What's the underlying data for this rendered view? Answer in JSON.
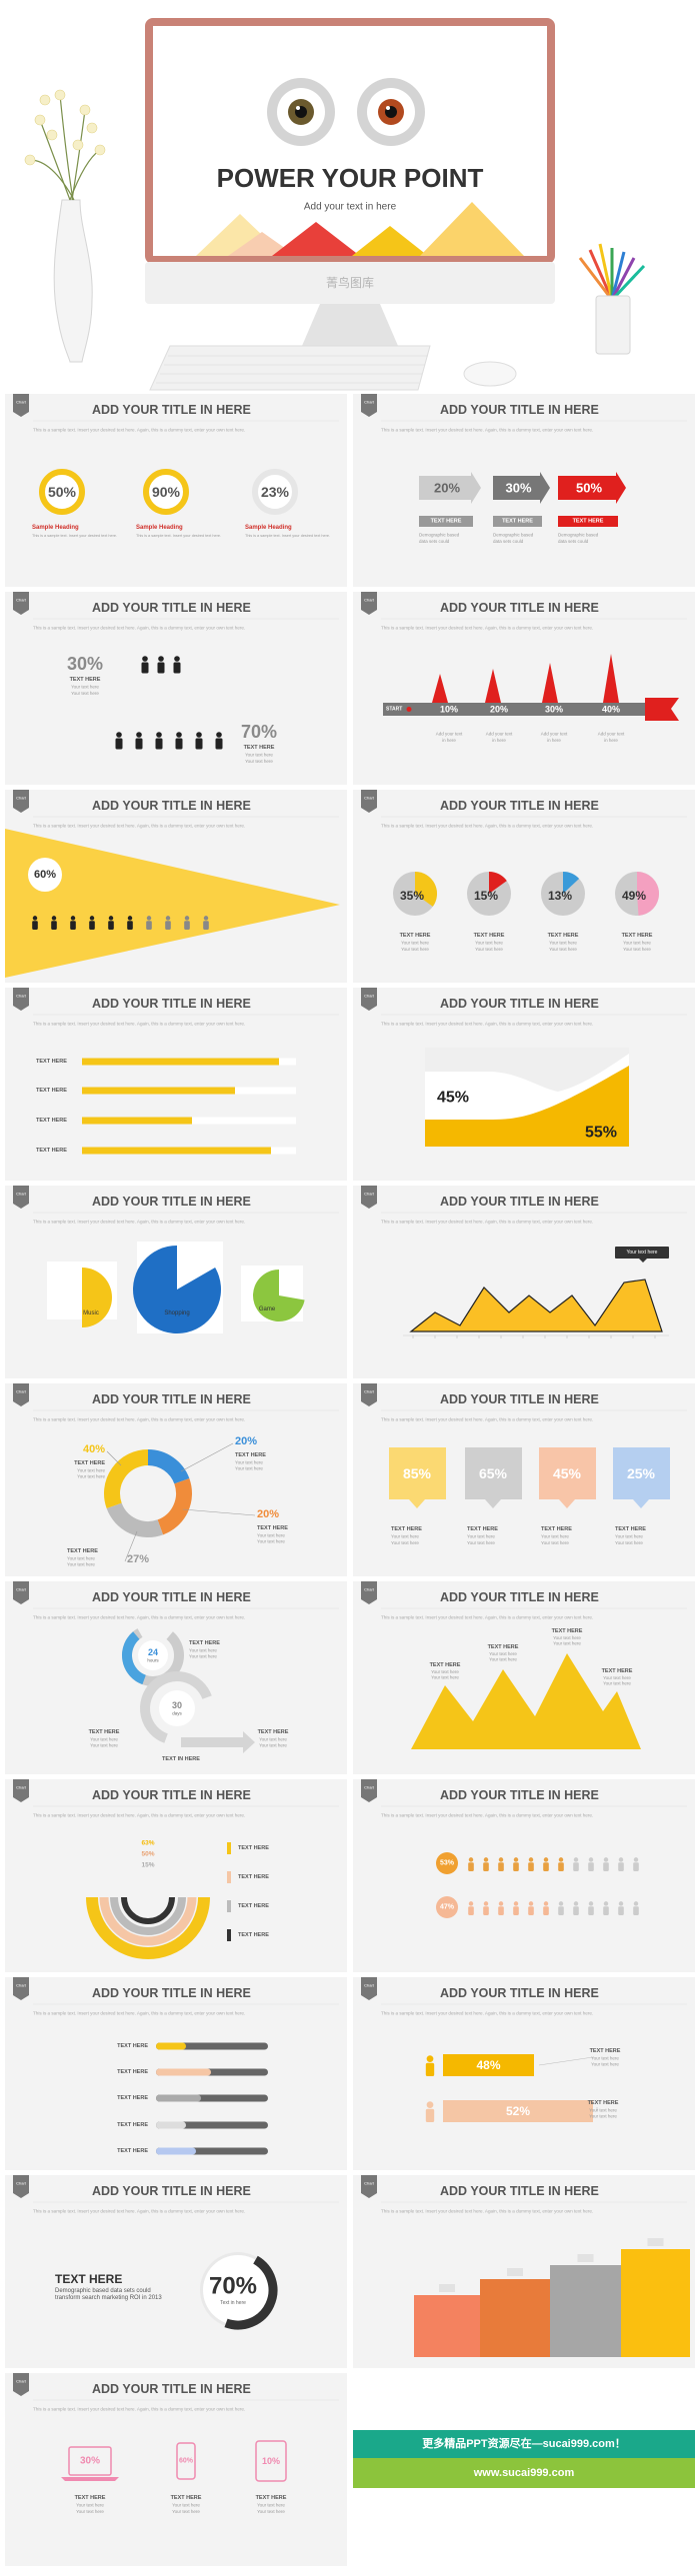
{
  "hero": {
    "title": "POWER YOUR POINT",
    "subtitle": "Add your text in here",
    "brand": "菁鸟图库"
  },
  "slides": [
    {
      "tag": "Chart",
      "title": "ADD YOUR TITLE IN HERE",
      "intro": "This is a sample text. Insert your desired text here. Again, this is a dummy text, enter your own text here.",
      "items": [
        {
          "value": "50%",
          "heading": "Sample Heading",
          "text": "This is a sample text. Insert your desired text here."
        },
        {
          "value": "90%",
          "heading": "Sample Heading",
          "text": "This is a sample text. Insert your desired text here."
        },
        {
          "value": "23%",
          "heading": "Sample Heading",
          "text": "This is a sample text. Insert your desired text here."
        }
      ]
    },
    {
      "tag": "Chart",
      "title": "ADD YOUR TITLE IN HERE",
      "intro": "This is a sample text. Insert your desired text here. Again, this is a dummy text, enter your own text here.",
      "items": [
        {
          "value": "20%",
          "label": "TEXT HERE",
          "text": [
            "Demographic based",
            "data sets could"
          ]
        },
        {
          "value": "30%",
          "label": "TEXT HERE",
          "text": [
            "Demographic based",
            "data sets could"
          ]
        },
        {
          "value": "50%",
          "label": "TEXT HERE",
          "text": [
            "Demographic based",
            "data sets could"
          ]
        }
      ]
    },
    {
      "tag": "Chart",
      "title": "ADD YOUR TITLE IN HERE",
      "intro": "This is a sample text. Insert your desired text here. Again, this is a dummy text, enter your own text here.",
      "items": [
        {
          "value": "30%",
          "label": "TEXT HERE",
          "text": [
            "Your text here",
            "Your text here"
          ]
        },
        {
          "value": "70%",
          "label": "TEXT HERE",
          "text": [
            "Your text here",
            "Your text here"
          ]
        }
      ]
    },
    {
      "tag": "Chart",
      "title": "ADD YOUR TITLE IN HERE",
      "intro": "This is a sample text. Insert your desired text here. Again, this is a dummy text, enter your own text here.",
      "start": "START",
      "items": [
        {
          "value": "10%",
          "text": [
            "Add your text",
            "in here"
          ]
        },
        {
          "value": "20%",
          "text": [
            "Add your text",
            "in here"
          ]
        },
        {
          "value": "30%",
          "text": [
            "Add your text",
            "in here"
          ]
        },
        {
          "value": "40%",
          "text": [
            "Add your text",
            "in here"
          ]
        }
      ]
    },
    {
      "tag": "Chart",
      "title": "ADD YOUR TITLE IN HERE",
      "intro": "This is a sample text. Insert your desired text here. Again, this is a dummy text, enter your own text here.",
      "value": "60%"
    },
    {
      "tag": "Chart",
      "title": "ADD YOUR TITLE IN HERE",
      "intro": "This is a sample text. Insert your desired text here. Again, this is a dummy text, enter your own text here.",
      "items": [
        {
          "value": "35%",
          "label": "TEXT HERE",
          "text": [
            "Your text here",
            "Your text here"
          ]
        },
        {
          "value": "15%",
          "label": "TEXT HERE",
          "text": [
            "Your text here",
            "Your text here"
          ]
        },
        {
          "value": "13%",
          "label": "TEXT HERE",
          "text": [
            "Your text here",
            "Your text here"
          ]
        },
        {
          "value": "49%",
          "label": "TEXT HERE",
          "text": [
            "Your text here",
            "Your text here"
          ]
        }
      ]
    },
    {
      "tag": "Chart",
      "title": "ADD YOUR TITLE IN HERE",
      "intro": "This is a sample text. Insert your desired text here. Again, this is a dummy text, enter your own text here.",
      "items": [
        "TEXT HERE",
        "TEXT HERE",
        "TEXT HERE",
        "TEXT HERE"
      ]
    },
    {
      "tag": "Chart",
      "title": "ADD YOUR TITLE IN HERE",
      "intro": "This is a sample text. Insert your desired text here. Again, this is a dummy text, enter your own text here.",
      "values": [
        "45%",
        "55%"
      ]
    },
    {
      "tag": "Chart",
      "title": "ADD YOUR TITLE IN HERE",
      "intro": "This is a sample text. Insert your desired text here. Again, this is a dummy text, enter your own text here.",
      "labels": [
        "Music",
        "Shopping",
        "Game"
      ]
    },
    {
      "tag": "Chart",
      "title": "ADD YOUR TITLE IN HERE",
      "intro": "This is a sample text. Insert your desired text here. Again, this is a dummy text, enter your own text here.",
      "note": "Your text here"
    },
    {
      "tag": "Chart",
      "title": "ADD YOUR TITLE IN HERE",
      "intro": "This is a sample text. Insert your desired text here. Again, this is a dummy text, enter your own text here.",
      "items": [
        {
          "value": "40%",
          "label": "TEXT HERE",
          "text": [
            "Your text here",
            "Your text here"
          ]
        },
        {
          "value": "20%",
          "label": "TEXT HERE",
          "text": [
            "Your text here",
            "Your text here"
          ]
        },
        {
          "value": "20%",
          "label": "TEXT HERE",
          "text": [
            "Your text here",
            "Your text here"
          ]
        },
        {
          "value": "27%",
          "label": "TEXT HERE",
          "text": [
            "Your text here",
            "Your text here"
          ]
        }
      ]
    },
    {
      "tag": "Chart",
      "title": "ADD YOUR TITLE IN HERE",
      "intro": "This is a sample text. Insert your desired text here. Again, this is a dummy text, enter your own text here.",
      "items": [
        {
          "value": "85%",
          "label": "TEXT HERE",
          "text": [
            "Your text here",
            "Your text here"
          ]
        },
        {
          "value": "65%",
          "label": "TEXT HERE",
          "text": [
            "Your text here",
            "Your text here"
          ]
        },
        {
          "value": "45%",
          "label": "TEXT HERE",
          "text": [
            "Your text here",
            "Your text here"
          ]
        },
        {
          "value": "25%",
          "label": "TEXT HERE",
          "text": [
            "Your text here",
            "Your text here"
          ]
        }
      ]
    },
    {
      "tag": "Chart",
      "title": "ADD YOUR TITLE IN HERE",
      "intro": "This is a sample text. Insert your desired text here. Again, this is a dummy text, enter your own text here.",
      "circles": [
        [
          "24",
          "hours"
        ],
        [
          "30",
          "days"
        ]
      ],
      "items": [
        {
          "label": "TEXT HERE",
          "text": [
            "Your text here",
            "Your text here"
          ]
        },
        {
          "label": "TEXT HERE",
          "text": [
            "Your text here",
            "Your text here"
          ]
        },
        {
          "label": "TEXT HERE",
          "text": [
            "Your text here",
            "Your text here"
          ]
        }
      ],
      "caption": "TEXT IN HERE"
    },
    {
      "tag": "Chart",
      "title": "ADD YOUR TITLE IN HERE",
      "intro": "This is a sample text. Insert your desired text here. Again, this is a dummy text, enter your own text here.",
      "items": [
        {
          "label": "TEXT HERE",
          "text": [
            "Your text here",
            "Your text here"
          ]
        },
        {
          "label": "TEXT HERE",
          "text": [
            "Your text here",
            "Your text here"
          ]
        },
        {
          "label": "TEXT HERE",
          "text": [
            "Your text here",
            "Your text here"
          ]
        },
        {
          "label": "TEXT HERE",
          "text": [
            "Your text here",
            "Your text here"
          ]
        }
      ]
    },
    {
      "tag": "Chart",
      "title": "ADD YOUR TITLE IN HERE",
      "intro": "This is a sample text. Insert your desired text here. Again, this is a dummy text, enter your own text here.",
      "values": [
        "63%",
        "50%",
        "15%"
      ],
      "items": [
        "TEXT HERE",
        "TEXT HERE",
        "TEXT HERE",
        "TEXT HERE"
      ]
    },
    {
      "tag": "Chart",
      "title": "ADD YOUR TITLE IN HERE",
      "intro": "This is a sample text. Insert your desired text here. Again, this is a dummy text, enter your own text here.",
      "values": [
        "53%",
        "47%"
      ]
    },
    {
      "tag": "Chart",
      "title": "ADD YOUR TITLE IN HERE",
      "intro": "This is a sample text. Insert your desired text here. Again, this is a dummy text, enter your own text here.",
      "items": [
        "TEXT HERE",
        "TEXT HERE",
        "TEXT HERE",
        "TEXT HERE",
        "TEXT HERE"
      ]
    },
    {
      "tag": "Chart",
      "title": "ADD YOUR TITLE IN HERE",
      "intro": "This is a sample text. Insert your desired text here. Again, this is a dummy text, enter your own text here.",
      "items": [
        {
          "value": "48%",
          "label": "TEXT HERE",
          "text": [
            "Your text here",
            "Your text here"
          ]
        },
        {
          "value": "52%",
          "label": "TEXT HERE",
          "text": [
            "Your text here",
            "Your text here"
          ]
        }
      ]
    },
    {
      "tag": "Chart",
      "title": "ADD YOUR TITLE IN HERE",
      "intro": "This is a sample text. Insert your desired text here. Again, this is a dummy text, enter your own text here.",
      "heading": "TEXT HERE",
      "text": [
        "Demographic based data sets could",
        "transform search marketing ROI in 2013"
      ],
      "value": "70%",
      "caption": "Text in here"
    },
    {
      "tag": "Chart",
      "title": "ADD YOUR TITLE IN HERE",
      "intro": "This is a sample text. Insert your desired text here. Again, this is a dummy text, enter your own text here."
    },
    {
      "tag": "Chart",
      "title": "ADD YOUR TITLE IN HERE",
      "intro": "This is a sample text. Insert your desired text here. Again, this is a dummy text, enter your own text here.",
      "items": [
        {
          "value": "30%",
          "label": "TEXT HERE",
          "text": [
            "Your text here",
            "Your text here"
          ]
        },
        {
          "value": "60%",
          "label": "TEXT HERE",
          "text": [
            "Your text here",
            "Your text here"
          ]
        },
        {
          "value": "10%",
          "label": "TEXT HERE",
          "text": [
            "Your text here",
            "Your text here"
          ]
        }
      ]
    }
  ],
  "banner": {
    "line1": "更多精品PPT资源尽在—sucai999.com！",
    "line2": "www.sucai999.com"
  }
}
